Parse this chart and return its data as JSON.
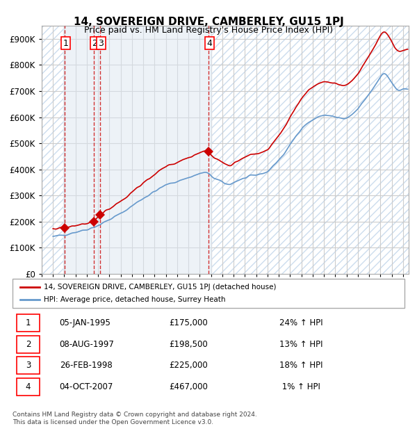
{
  "title": "14, SOVEREIGN DRIVE, CAMBERLEY, GU15 1PJ",
  "subtitle": "Price paid vs. HM Land Registry's House Price Index (HPI)",
  "ylabel": "",
  "xlim_start": 1993.0,
  "xlim_end": 2025.5,
  "ylim": [
    0,
    950000
  ],
  "yticks": [
    0,
    100000,
    200000,
    300000,
    400000,
    500000,
    600000,
    700000,
    800000,
    900000
  ],
  "ytick_labels": [
    "£0",
    "£100K",
    "£200K",
    "£300K",
    "£400K",
    "£500K",
    "£600K",
    "£700K",
    "£800K",
    "£900K"
  ],
  "price_paid_color": "#cc0000",
  "hpi_color": "#6699cc",
  "background_hatch_color": "#dce6f1",
  "sale_marker_color": "#cc0000",
  "vline_color": "#cc0000",
  "grid_color": "#cccccc",
  "purchases": [
    {
      "date_year": 1995.03,
      "price": 175000,
      "label": "1"
    },
    {
      "date_year": 1997.59,
      "price": 198500,
      "label": "2"
    },
    {
      "date_year": 1998.15,
      "price": 225000,
      "label": "3"
    },
    {
      "date_year": 2007.75,
      "price": 467000,
      "label": "4"
    }
  ],
  "legend_entries": [
    "14, SOVEREIGN DRIVE, CAMBERLEY, GU15 1PJ (detached house)",
    "HPI: Average price, detached house, Surrey Heath"
  ],
  "table_rows": [
    [
      "1",
      "05-JAN-1995",
      "£175,000",
      "24% ↑ HPI"
    ],
    [
      "2",
      "08-AUG-1997",
      "£198,500",
      "13% ↑ HPI"
    ],
    [
      "3",
      "26-FEB-1998",
      "£225,000",
      "18% ↑ HPI"
    ],
    [
      "4",
      "04-OCT-2007",
      "£467,000",
      " 1% ↑ HPI"
    ]
  ],
  "footer": "Contains HM Land Registry data © Crown copyright and database right 2024.\nThis data is licensed under the Open Government Licence v3.0.",
  "shaded_region_start": 1994.9,
  "shaded_region_end": 2008.0
}
